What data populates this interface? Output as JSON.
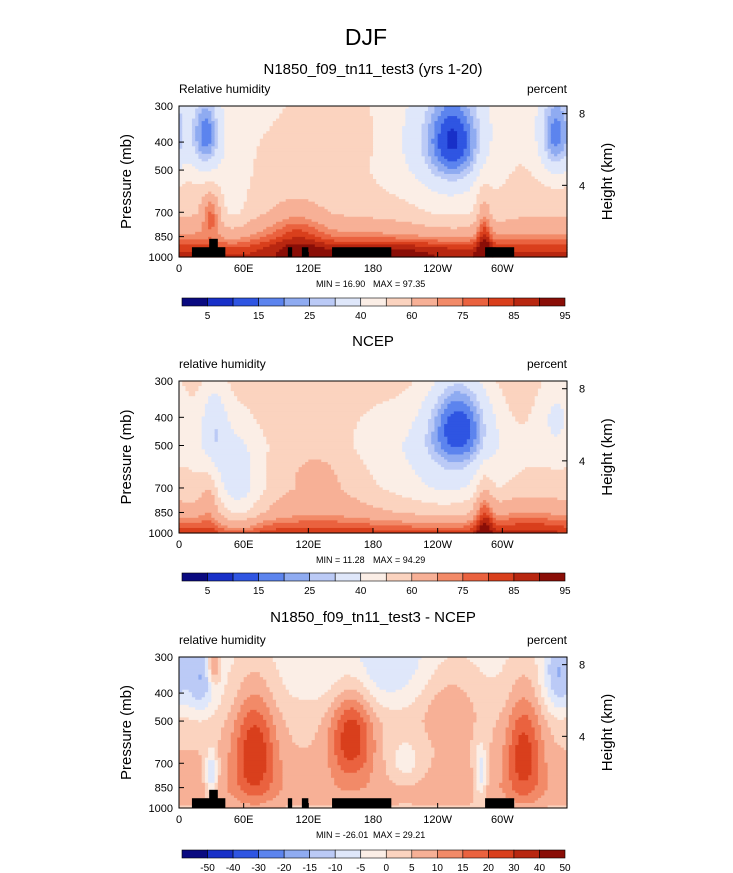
{
  "figure": {
    "title": "DJF"
  },
  "colors": {
    "palette": [
      "#0a0a80",
      "#1830c8",
      "#2f55e2",
      "#5c84ee",
      "#8fabf1",
      "#bbcaf6",
      "#dfe7fa",
      "#fbeee6",
      "#fbd3bf",
      "#f7b096",
      "#f28a68",
      "#ea623f",
      "#d93f1c",
      "#b82710",
      "#8a0e07"
    ],
    "palette_diff": [
      "#0a0a80",
      "#1830c8",
      "#2f55e2",
      "#5c84ee",
      "#8fabf1",
      "#bbcaf6",
      "#dfe7fa",
      "#fbeee6",
      "#fbd3bf",
      "#f7b096",
      "#f28a68",
      "#ea623f",
      "#d93f1c",
      "#b82710",
      "#8a0e07"
    ],
    "terrain": "#000000"
  },
  "chart_data": [
    {
      "type": "heatmap",
      "title": "N1850_f09_tn11_test3 (yrs 1-20)",
      "left_label": "Relative humidity",
      "right_label": "percent",
      "ylabel": "Pressure (mb)",
      "ylabel_right": "Height (km)",
      "xlabel": "",
      "x_ticks": [
        "0",
        "60E",
        "120E",
        "180",
        "120W",
        "60W"
      ],
      "x_tick_lons": [
        0,
        60,
        120,
        180,
        240,
        300
      ],
      "xlim": [
        0,
        360
      ],
      "y_ticks": [
        "300",
        "400",
        "500",
        "700",
        "850",
        "1000"
      ],
      "y_tick_values": [
        300,
        400,
        500,
        700,
        850,
        1000
      ],
      "ylim": [
        1000,
        300
      ],
      "height_ticks": [
        "8",
        "4"
      ],
      "height_tick_km": [
        8,
        4
      ],
      "min_label": "MIN =  16.90",
      "max_label": "MAX =  97.35",
      "min": 16.9,
      "max": 97.35,
      "colorbar_labels": [
        "5",
        "15",
        "25",
        "40",
        "60",
        "75",
        "85",
        "95"
      ],
      "colorbar_levels": [
        5,
        10,
        15,
        20,
        25,
        30,
        40,
        50,
        60,
        70,
        75,
        80,
        85,
        90,
        95
      ],
      "mean_profile": [
        [
          300,
          48
        ],
        [
          400,
          50
        ],
        [
          500,
          52
        ],
        [
          700,
          58
        ],
        [
          850,
          72
        ],
        [
          925,
          82
        ],
        [
          1000,
          87
        ]
      ],
      "anomalies": [
        {
          "lon": 25,
          "p": 380,
          "amp": -32,
          "sx": 10,
          "sy": 90
        },
        {
          "lon": 30,
          "p": 700,
          "amp": 20,
          "sx": 6,
          "sy": 80
        },
        {
          "lon": 50,
          "p": 640,
          "amp": -10,
          "sx": 12,
          "sy": 180
        },
        {
          "lon": 110,
          "p": 820,
          "amp": 12,
          "sx": 18,
          "sy": 130
        },
        {
          "lon": 150,
          "p": 360,
          "amp": 10,
          "sx": 30,
          "sy": 110
        },
        {
          "lon": 205,
          "p": 420,
          "amp": -8,
          "sx": 30,
          "sy": 150
        },
        {
          "lon": 255,
          "p": 390,
          "amp": -34,
          "sx": 20,
          "sy": 110
        },
        {
          "lon": 255,
          "p": 620,
          "amp": -10,
          "sx": 30,
          "sy": 200
        },
        {
          "lon": 283,
          "p": 830,
          "amp": 18,
          "sx": 5,
          "sy": 190
        },
        {
          "lon": 350,
          "p": 380,
          "amp": -32,
          "sx": 12,
          "sy": 100
        },
        {
          "lon": 200,
          "p": 950,
          "amp": 8,
          "sx": 60,
          "sy": 60
        }
      ],
      "terrain": [
        {
          "lon_start": 12,
          "lon_end": 43,
          "p_top": 925
        },
        {
          "lon_start": 28,
          "lon_end": 36,
          "p_top": 865
        },
        {
          "lon_start": 101,
          "lon_end": 105,
          "p_top": 925
        },
        {
          "lon_start": 114,
          "lon_end": 120,
          "p_top": 925
        },
        {
          "lon_start": 142,
          "lon_end": 197,
          "p_top": 925
        },
        {
          "lon_start": 284,
          "lon_end": 311,
          "p_top": 925
        }
      ]
    },
    {
      "type": "heatmap",
      "title": "NCEP",
      "left_label": "relative humidity",
      "right_label": "percent",
      "ylabel": "Pressure (mb)",
      "ylabel_right": "Height (km)",
      "xlabel": "",
      "x_ticks": [
        "0",
        "60E",
        "120E",
        "180",
        "120W",
        "60W"
      ],
      "x_tick_lons": [
        0,
        60,
        120,
        180,
        240,
        300
      ],
      "xlim": [
        0,
        360
      ],
      "y_ticks": [
        "300",
        "400",
        "500",
        "700",
        "850",
        "1000"
      ],
      "y_tick_values": [
        300,
        400,
        500,
        700,
        850,
        1000
      ],
      "ylim": [
        1000,
        300
      ],
      "height_ticks": [
        "8",
        "4"
      ],
      "height_tick_km": [
        8,
        4
      ],
      "min_label": "MIN =  11.28",
      "max_label": "MAX =  94.29",
      "min": 11.28,
      "max": 94.29,
      "colorbar_labels": [
        "5",
        "15",
        "25",
        "40",
        "60",
        "75",
        "85",
        "95"
      ],
      "colorbar_levels": [
        5,
        10,
        15,
        20,
        25,
        30,
        40,
        50,
        60,
        70,
        75,
        80,
        85,
        90,
        95
      ],
      "mean_profile": [
        [
          300,
          58
        ],
        [
          400,
          54
        ],
        [
          500,
          50
        ],
        [
          700,
          52
        ],
        [
          850,
          63
        ],
        [
          925,
          74
        ],
        [
          1000,
          84
        ]
      ],
      "anomalies": [
        {
          "lon": 32,
          "p": 420,
          "amp": -20,
          "sx": 10,
          "sy": 120
        },
        {
          "lon": 28,
          "p": 760,
          "amp": 12,
          "sx": 6,
          "sy": 120
        },
        {
          "lon": 55,
          "p": 700,
          "amp": -18,
          "sx": 15,
          "sy": 220
        },
        {
          "lon": 130,
          "p": 640,
          "amp": 12,
          "sx": 28,
          "sy": 170
        },
        {
          "lon": 185,
          "p": 440,
          "amp": -6,
          "sx": 35,
          "sy": 150
        },
        {
          "lon": 260,
          "p": 410,
          "amp": -36,
          "sx": 22,
          "sy": 120
        },
        {
          "lon": 250,
          "p": 650,
          "amp": -12,
          "sx": 35,
          "sy": 200
        },
        {
          "lon": 283,
          "p": 850,
          "amp": 18,
          "sx": 6,
          "sy": 180
        },
        {
          "lon": 350,
          "p": 380,
          "amp": -16,
          "sx": 14,
          "sy": 100
        },
        {
          "lon": 320,
          "p": 850,
          "amp": 8,
          "sx": 30,
          "sy": 120
        }
      ],
      "terrain": []
    },
    {
      "type": "heatmap",
      "title": "N1850_f09_tn11_test3 - NCEP",
      "left_label": "relative humidity",
      "right_label": "percent",
      "ylabel": "Pressure (mb)",
      "ylabel_right": "Height (km)",
      "xlabel": "",
      "x_ticks": [
        "0",
        "60E",
        "120E",
        "180",
        "120W",
        "60W"
      ],
      "x_tick_lons": [
        0,
        60,
        120,
        180,
        240,
        300
      ],
      "xlim": [
        0,
        360
      ],
      "y_ticks": [
        "300",
        "400",
        "500",
        "700",
        "850",
        "1000"
      ],
      "y_tick_values": [
        300,
        400,
        500,
        700,
        850,
        1000
      ],
      "ylim": [
        1000,
        300
      ],
      "height_ticks": [
        "8",
        "4"
      ],
      "height_tick_km": [
        8,
        4
      ],
      "min_label": "MIN = -26.01",
      "max_label": "MAX =  29.21",
      "min": -26.01,
      "max": 29.21,
      "colorbar_labels": [
        "-50",
        "-40",
        "-30",
        "-20",
        "-15",
        "-10",
        "-5",
        "0",
        "5",
        "10",
        "15",
        "20",
        "30",
        "40",
        "50"
      ],
      "colorbar_levels": [
        -50,
        -40,
        -30,
        -20,
        -15,
        -10,
        -5,
        0,
        5,
        10,
        15,
        20,
        30,
        40,
        50
      ],
      "mean_profile": [
        [
          300,
          -2
        ],
        [
          400,
          0
        ],
        [
          500,
          3
        ],
        [
          700,
          6
        ],
        [
          850,
          8
        ],
        [
          925,
          7
        ],
        [
          1000,
          4
        ]
      ],
      "anomalies": [
        {
          "lon": 20,
          "p": 360,
          "amp": -14,
          "sx": 10,
          "sy": 80
        },
        {
          "lon": 32,
          "p": 320,
          "amp": 16,
          "sx": 4,
          "sy": 40
        },
        {
          "lon": 30,
          "p": 760,
          "amp": -18,
          "sx": 4,
          "sy": 90
        },
        {
          "lon": 70,
          "p": 640,
          "amp": 20,
          "sx": 14,
          "sy": 200
        },
        {
          "lon": 160,
          "p": 560,
          "amp": 20,
          "sx": 14,
          "sy": 150
        },
        {
          "lon": 210,
          "p": 700,
          "amp": -8,
          "sx": 12,
          "sy": 100
        },
        {
          "lon": 185,
          "p": 330,
          "amp": -8,
          "sx": 40,
          "sy": 80
        },
        {
          "lon": 250,
          "p": 420,
          "amp": 8,
          "sx": 20,
          "sy": 100
        },
        {
          "lon": 280,
          "p": 760,
          "amp": -14,
          "sx": 4,
          "sy": 120
        },
        {
          "lon": 320,
          "p": 640,
          "amp": 18,
          "sx": 12,
          "sy": 200
        },
        {
          "lon": 352,
          "p": 350,
          "amp": -14,
          "sx": 10,
          "sy": 80
        }
      ],
      "terrain": [
        {
          "lon_start": 12,
          "lon_end": 43,
          "p_top": 925
        },
        {
          "lon_start": 28,
          "lon_end": 36,
          "p_top": 865
        },
        {
          "lon_start": 101,
          "lon_end": 105,
          "p_top": 925
        },
        {
          "lon_start": 114,
          "lon_end": 120,
          "p_top": 925
        },
        {
          "lon_start": 142,
          "lon_end": 197,
          "p_top": 925
        },
        {
          "lon_start": 284,
          "lon_end": 311,
          "p_top": 925
        }
      ]
    }
  ]
}
